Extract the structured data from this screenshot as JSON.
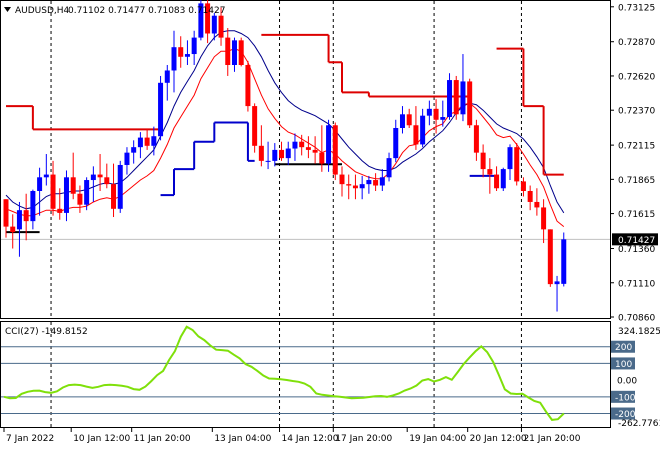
{
  "header": {
    "symbol": "AUDUSD,H4",
    "ohlc": "0.71102 0.71477 0.71083 0.71427"
  },
  "cci": {
    "label": "CCI(27) -149.8152",
    "scale_labels": [
      "324.1825",
      "-262.7761"
    ],
    "level_labels": [
      {
        "value": 200,
        "text": "200"
      },
      {
        "value": 100,
        "text": "100"
      },
      {
        "value": 0,
        "text": "0.00"
      },
      {
        "value": -100,
        "text": "-100"
      },
      {
        "value": -200,
        "text": "-200"
      }
    ],
    "range": [
      -262.7761,
      324.1825
    ],
    "values": [
      -100,
      -108,
      -107,
      -82,
      -70,
      -64,
      -63,
      -72,
      -76,
      -67,
      -44,
      -30,
      -27,
      -30,
      -39,
      -46,
      -40,
      -30,
      -28,
      -30,
      -34,
      -40,
      -54,
      -58,
      -39,
      -6,
      30,
      55,
      120,
      173,
      260,
      320,
      300,
      262,
      240,
      208,
      182,
      180,
      176,
      152,
      130,
      96,
      80,
      55,
      28,
      10,
      8,
      5,
      1,
      -5,
      -10,
      -20,
      -40,
      -80,
      -88,
      -92,
      -96,
      -100,
      -104,
      -108,
      -107,
      -106,
      -101,
      -97,
      -95,
      -100,
      -92,
      -80,
      -62,
      -50,
      -32,
      -2,
      6,
      -8,
      2,
      18,
      2,
      48,
      96,
      135,
      172,
      202,
      168,
      110,
      30,
      -55,
      -80,
      -83,
      -82,
      -104,
      -125,
      -135,
      -190,
      -238,
      -234,
      -200
    ]
  },
  "price_axis": {
    "labels": [
      "0.73125",
      "0.72870",
      "0.72620",
      "0.72370",
      "0.72115",
      "0.71865",
      "0.71615",
      "0.71360",
      "0.71110",
      "0.70860"
    ],
    "current_price": "0.71427",
    "range": [
      0.7086,
      0.7316
    ]
  },
  "time_axis": {
    "labels": [
      "7 Jan 2022",
      "10 Jan 12:00",
      "11 Jan 20:00",
      "13 Jan 04:00",
      "14 Jan 12:00",
      "17 Jan 20:00",
      "19 Jan 04:00",
      "20 Jan 12:00",
      "21 Jan 20:00"
    ]
  },
  "colors": {
    "bull": "#0000ff",
    "bear": "#ff0000",
    "sma": "#00008b",
    "ema": "#ff0000",
    "supertrend_up": "#0000cc",
    "supertrend_down": "#dd0000",
    "cci": "#7fe00a",
    "grid": "#000000",
    "level_line": "#4a6a8a"
  },
  "chart_data": {
    "type": "candlestick",
    "title": "AUDUSD,H4  0.71102 0.71477 0.71083 0.71427",
    "interval": "H4",
    "ylim": [
      0.7086,
      0.7316
    ],
    "candles": [
      {
        "o": 0.7172,
        "h": 0.7172,
        "l": 0.7144,
        "c": 0.7152
      },
      {
        "o": 0.7152,
        "h": 0.7161,
        "l": 0.7136,
        "c": 0.7148
      },
      {
        "o": 0.715,
        "h": 0.717,
        "l": 0.713,
        "c": 0.7164
      },
      {
        "o": 0.7164,
        "h": 0.7176,
        "l": 0.7142,
        "c": 0.7156
      },
      {
        "o": 0.7156,
        "h": 0.7179,
        "l": 0.715,
        "c": 0.7178
      },
      {
        "o": 0.7178,
        "h": 0.7195,
        "l": 0.716,
        "c": 0.7188
      },
      {
        "o": 0.7188,
        "h": 0.7205,
        "l": 0.7182,
        "c": 0.719
      },
      {
        "o": 0.719,
        "h": 0.72,
        "l": 0.716,
        "c": 0.7165
      },
      {
        "o": 0.7165,
        "h": 0.718,
        "l": 0.7157,
        "c": 0.7162
      },
      {
        "o": 0.7162,
        "h": 0.7193,
        "l": 0.7156,
        "c": 0.7188
      },
      {
        "o": 0.7188,
        "h": 0.7206,
        "l": 0.7172,
        "c": 0.7176
      },
      {
        "o": 0.7176,
        "h": 0.7182,
        "l": 0.7162,
        "c": 0.7168
      },
      {
        "o": 0.7168,
        "h": 0.7188,
        "l": 0.7164,
        "c": 0.7186
      },
      {
        "o": 0.7186,
        "h": 0.7196,
        "l": 0.717,
        "c": 0.719
      },
      {
        "o": 0.719,
        "h": 0.7205,
        "l": 0.7178,
        "c": 0.7188
      },
      {
        "o": 0.7188,
        "h": 0.7198,
        "l": 0.718,
        "c": 0.7183
      },
      {
        "o": 0.7183,
        "h": 0.7198,
        "l": 0.7159,
        "c": 0.7165
      },
      {
        "o": 0.7165,
        "h": 0.72,
        "l": 0.7162,
        "c": 0.7197
      },
      {
        "o": 0.7197,
        "h": 0.721,
        "l": 0.719,
        "c": 0.7206
      },
      {
        "o": 0.7206,
        "h": 0.7215,
        "l": 0.7198,
        "c": 0.721
      },
      {
        "o": 0.721,
        "h": 0.7221,
        "l": 0.7202,
        "c": 0.7217
      },
      {
        "o": 0.7217,
        "h": 0.7223,
        "l": 0.7208,
        "c": 0.7211
      },
      {
        "o": 0.7211,
        "h": 0.7225,
        "l": 0.7204,
        "c": 0.7218
      },
      {
        "o": 0.7218,
        "h": 0.7262,
        "l": 0.7215,
        "c": 0.7257
      },
      {
        "o": 0.7257,
        "h": 0.727,
        "l": 0.7244,
        "c": 0.7266
      },
      {
        "o": 0.7266,
        "h": 0.7295,
        "l": 0.725,
        "c": 0.7283
      },
      {
        "o": 0.7283,
        "h": 0.7291,
        "l": 0.7268,
        "c": 0.7276
      },
      {
        "o": 0.7276,
        "h": 0.7288,
        "l": 0.727,
        "c": 0.7278
      },
      {
        "o": 0.7278,
        "h": 0.7295,
        "l": 0.727,
        "c": 0.729
      },
      {
        "o": 0.729,
        "h": 0.732,
        "l": 0.7288,
        "c": 0.7315
      },
      {
        "o": 0.7315,
        "h": 0.732,
        "l": 0.7286,
        "c": 0.7293
      },
      {
        "o": 0.7293,
        "h": 0.7308,
        "l": 0.7288,
        "c": 0.7306
      },
      {
        "o": 0.7306,
        "h": 0.7312,
        "l": 0.7284,
        "c": 0.729
      },
      {
        "o": 0.729,
        "h": 0.7297,
        "l": 0.7262,
        "c": 0.727
      },
      {
        "o": 0.727,
        "h": 0.729,
        "l": 0.7265,
        "c": 0.7288
      },
      {
        "o": 0.7288,
        "h": 0.729,
        "l": 0.7269,
        "c": 0.727
      },
      {
        "o": 0.727,
        "h": 0.7273,
        "l": 0.7236,
        "c": 0.724
      },
      {
        "o": 0.724,
        "h": 0.7242,
        "l": 0.7206,
        "c": 0.7211
      },
      {
        "o": 0.7211,
        "h": 0.7226,
        "l": 0.7196,
        "c": 0.72
      },
      {
        "o": 0.72,
        "h": 0.7214,
        "l": 0.7194,
        "c": 0.72
      },
      {
        "o": 0.72,
        "h": 0.7213,
        "l": 0.7196,
        "c": 0.7208
      },
      {
        "o": 0.7208,
        "h": 0.7214,
        "l": 0.72,
        "c": 0.7202
      },
      {
        "o": 0.7202,
        "h": 0.7214,
        "l": 0.7197,
        "c": 0.7209
      },
      {
        "o": 0.7209,
        "h": 0.722,
        "l": 0.72,
        "c": 0.7214
      },
      {
        "o": 0.7214,
        "h": 0.7219,
        "l": 0.7204,
        "c": 0.721
      },
      {
        "o": 0.721,
        "h": 0.7218,
        "l": 0.7202,
        "c": 0.7208
      },
      {
        "o": 0.7208,
        "h": 0.7218,
        "l": 0.7198,
        "c": 0.7206
      },
      {
        "o": 0.7206,
        "h": 0.7226,
        "l": 0.7192,
        "c": 0.7198
      },
      {
        "o": 0.7198,
        "h": 0.723,
        "l": 0.7192,
        "c": 0.7226
      },
      {
        "o": 0.7226,
        "h": 0.7228,
        "l": 0.7186,
        "c": 0.719
      },
      {
        "o": 0.719,
        "h": 0.7196,
        "l": 0.7174,
        "c": 0.7183
      },
      {
        "o": 0.7183,
        "h": 0.719,
        "l": 0.7172,
        "c": 0.7182
      },
      {
        "o": 0.7182,
        "h": 0.719,
        "l": 0.7172,
        "c": 0.718
      },
      {
        "o": 0.718,
        "h": 0.7189,
        "l": 0.7172,
        "c": 0.7183
      },
      {
        "o": 0.7183,
        "h": 0.7189,
        "l": 0.7176,
        "c": 0.7186
      },
      {
        "o": 0.7186,
        "h": 0.7191,
        "l": 0.7178,
        "c": 0.7182
      },
      {
        "o": 0.7182,
        "h": 0.7194,
        "l": 0.7178,
        "c": 0.7188
      },
      {
        "o": 0.7188,
        "h": 0.7206,
        "l": 0.7185,
        "c": 0.7202
      },
      {
        "o": 0.7202,
        "h": 0.723,
        "l": 0.7199,
        "c": 0.7224
      },
      {
        "o": 0.7224,
        "h": 0.724,
        "l": 0.722,
        "c": 0.7234
      },
      {
        "o": 0.7234,
        "h": 0.7238,
        "l": 0.7224,
        "c": 0.7226
      },
      {
        "o": 0.7226,
        "h": 0.724,
        "l": 0.7208,
        "c": 0.7212
      },
      {
        "o": 0.7212,
        "h": 0.7238,
        "l": 0.721,
        "c": 0.7233
      },
      {
        "o": 0.7233,
        "h": 0.7244,
        "l": 0.7226,
        "c": 0.7238
      },
      {
        "o": 0.7238,
        "h": 0.7245,
        "l": 0.722,
        "c": 0.723
      },
      {
        "o": 0.723,
        "h": 0.7244,
        "l": 0.7225,
        "c": 0.7232
      },
      {
        "o": 0.7232,
        "h": 0.7264,
        "l": 0.723,
        "c": 0.7259
      },
      {
        "o": 0.7259,
        "h": 0.7262,
        "l": 0.723,
        "c": 0.7234
      },
      {
        "o": 0.7234,
        "h": 0.7278,
        "l": 0.7229,
        "c": 0.7258
      },
      {
        "o": 0.7258,
        "h": 0.726,
        "l": 0.7224,
        "c": 0.7226
      },
      {
        "o": 0.7226,
        "h": 0.723,
        "l": 0.72,
        "c": 0.7206
      },
      {
        "o": 0.7206,
        "h": 0.7212,
        "l": 0.7188,
        "c": 0.7194
      },
      {
        "o": 0.7194,
        "h": 0.7202,
        "l": 0.7176,
        "c": 0.719
      },
      {
        "o": 0.719,
        "h": 0.7196,
        "l": 0.7178,
        "c": 0.718
      },
      {
        "o": 0.718,
        "h": 0.7195,
        "l": 0.7178,
        "c": 0.7194
      },
      {
        "o": 0.7194,
        "h": 0.7212,
        "l": 0.7186,
        "c": 0.721
      },
      {
        "o": 0.721,
        "h": 0.7213,
        "l": 0.7182,
        "c": 0.7185
      },
      {
        "o": 0.7185,
        "h": 0.7188,
        "l": 0.7174,
        "c": 0.7178
      },
      {
        "o": 0.7178,
        "h": 0.7182,
        "l": 0.7164,
        "c": 0.717
      },
      {
        "o": 0.717,
        "h": 0.718,
        "l": 0.716,
        "c": 0.7166
      },
      {
        "o": 0.7166,
        "h": 0.7172,
        "l": 0.714,
        "c": 0.715
      },
      {
        "o": 0.715,
        "h": 0.715,
        "l": 0.7108,
        "c": 0.711
      },
      {
        "o": 0.711,
        "h": 0.7116,
        "l": 0.709,
        "c": 0.7112
      },
      {
        "o": 0.71102,
        "h": 0.71477,
        "l": 0.71083,
        "c": 0.71427
      }
    ],
    "sma": [
      0.7175,
      0.717,
      0.7167,
      0.7165,
      0.7166,
      0.717,
      0.7174,
      0.7176,
      0.7176,
      0.7177,
      0.7178,
      0.7178,
      0.7179,
      0.7181,
      0.7183,
      0.7184,
      0.7183,
      0.7184,
      0.7188,
      0.7193,
      0.7198,
      0.7203,
      0.7208,
      0.7218,
      0.7228,
      0.724,
      0.725,
      0.7258,
      0.7266,
      0.7276,
      0.7284,
      0.729,
      0.7294,
      0.7295,
      0.7295,
      0.7293,
      0.729,
      0.7284,
      0.7276,
      0.7266,
      0.7257,
      0.725,
      0.7244,
      0.724,
      0.7237,
      0.7235,
      0.7233,
      0.723,
      0.7227,
      0.7222,
      0.7216,
      0.721,
      0.7205,
      0.72,
      0.7196,
      0.7194,
      0.7193,
      0.7193,
      0.7195,
      0.7199,
      0.7202,
      0.7205,
      0.7209,
      0.7214,
      0.7218,
      0.7222,
      0.7228,
      0.7235,
      0.724,
      0.7242,
      0.7241,
      0.7237,
      0.7232,
      0.7227,
      0.7224,
      0.7222,
      0.722,
      0.7216,
      0.721,
      0.7203,
      0.7195,
      0.7182,
      0.717,
      0.7162
    ],
    "ema": [
      0.7165,
      0.7163,
      0.7161,
      0.716,
      0.716,
      0.7162,
      0.7164,
      0.7164,
      0.7163,
      0.7165,
      0.7166,
      0.7166,
      0.7167,
      0.717,
      0.7172,
      0.7173,
      0.7172,
      0.7174,
      0.7178,
      0.7182,
      0.7186,
      0.7189,
      0.7193,
      0.7202,
      0.7212,
      0.7224,
      0.7232,
      0.724,
      0.7248,
      0.726,
      0.7268,
      0.7276,
      0.728,
      0.728,
      0.7282,
      0.728,
      0.7272,
      0.726,
      0.7248,
      0.7238,
      0.7231,
      0.7225,
      0.7221,
      0.7219,
      0.7216,
      0.7213,
      0.721,
      0.7206,
      0.7208,
      0.7205,
      0.72,
      0.7196,
      0.7192,
      0.719,
      0.7188,
      0.7187,
      0.7187,
      0.7191,
      0.7198,
      0.7206,
      0.7211,
      0.7212,
      0.7217,
      0.7222,
      0.7225,
      0.7227,
      0.7234,
      0.7236,
      0.7241,
      0.7242,
      0.7238,
      0.7232,
      0.7226,
      0.7219,
      0.7217,
      0.7218,
      0.7212,
      0.7205,
      0.7197,
      0.719,
      0.7181,
      0.7168,
      0.7156,
      0.7152
    ],
    "supertrend": [
      {
        "dir": "down",
        "from": 0,
        "to": 4,
        "value": 0.724
      },
      {
        "dir": "down",
        "from": 4,
        "to": 23,
        "value": 0.7223
      },
      {
        "dir": "up",
        "from": 23,
        "to": 25,
        "value": 0.7175
      },
      {
        "dir": "up",
        "from": 25,
        "to": 28,
        "value": 0.7194
      },
      {
        "dir": "up",
        "from": 28,
        "to": 31,
        "value": 0.7214
      },
      {
        "dir": "up",
        "from": 31,
        "to": 36,
        "value": 0.7228
      },
      {
        "dir": "up",
        "from": 36,
        "to": 37,
        "value": 0.72
      },
      {
        "dir": "down",
        "from": 38,
        "to": 48,
        "value": 0.7292
      },
      {
        "dir": "down",
        "from": 48,
        "to": 50,
        "value": 0.7272
      },
      {
        "dir": "down",
        "from": 50,
        "to": 54,
        "value": 0.725
      },
      {
        "dir": "down",
        "from": 54,
        "to": 69,
        "value": 0.7247
      },
      {
        "dir": "up",
        "from": 69,
        "to": 73,
        "value": 0.7189
      },
      {
        "dir": "down",
        "from": 73,
        "to": 77,
        "value": 0.7282
      },
      {
        "dir": "down",
        "from": 77,
        "to": 80,
        "value": 0.724
      },
      {
        "dir": "down",
        "from": 80,
        "to": 83,
        "value": 0.719
      }
    ],
    "hline": {
      "value": 0.71975,
      "from": 40,
      "to": 50
    },
    "leftline": {
      "value": 0.7148,
      "from": 0,
      "to": 5
    }
  }
}
